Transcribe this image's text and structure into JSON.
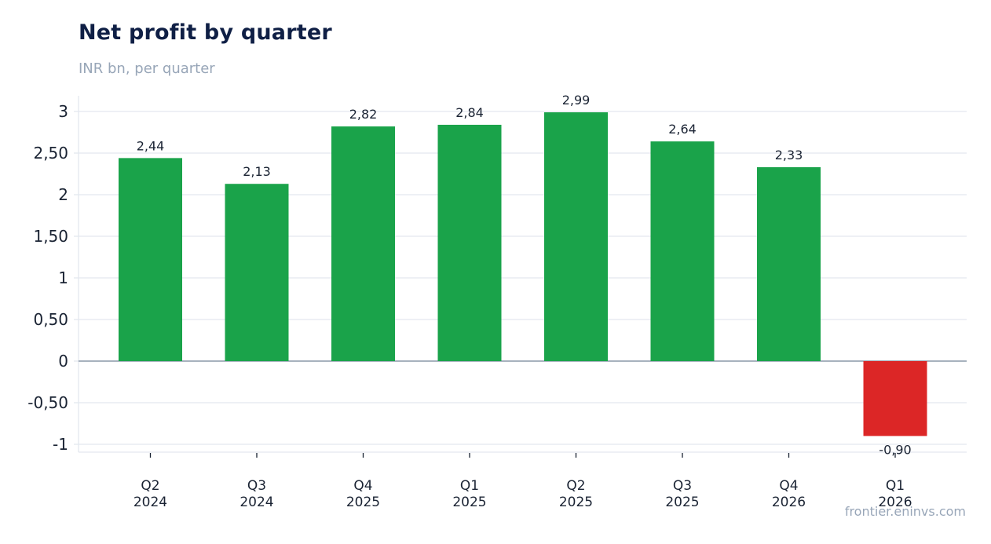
{
  "header": {
    "title": "Net profit by quarter",
    "subtitle": "INR bn, per quarter"
  },
  "footer": {
    "source": "frontier.eninvs.com"
  },
  "colors": {
    "positive": "#1aa34a",
    "negative": "#dc2626"
  },
  "chart_data": {
    "type": "bar",
    "title": "Net profit by quarter",
    "subtitle": "INR bn, per quarter",
    "xlabel": "",
    "ylabel": "",
    "categories": [
      [
        "Q2",
        "2024"
      ],
      [
        "Q3",
        "2024"
      ],
      [
        "Q4",
        "2025"
      ],
      [
        "Q1",
        "2025"
      ],
      [
        "Q2",
        "2025"
      ],
      [
        "Q3",
        "2025"
      ],
      [
        "Q4",
        "2026"
      ],
      [
        "Q1",
        "2026"
      ]
    ],
    "values": [
      2.44,
      2.13,
      2.82,
      2.84,
      2.99,
      2.64,
      2.33,
      -0.9
    ],
    "value_labels": [
      "2,44",
      "2,13",
      "2,82",
      "2,84",
      "2,99",
      "2,64",
      "2,33",
      "-0,90"
    ],
    "yticks": [
      -1,
      -0.5,
      0,
      0.5,
      1,
      1.5,
      2,
      2.5,
      3
    ],
    "ytick_labels": [
      "-1",
      "-0,50",
      "0",
      "0,50",
      "1",
      "1,50",
      "2",
      "2,50",
      "3"
    ],
    "ylim": [
      -1.1,
      3.2
    ],
    "grid": true,
    "legend": "none"
  }
}
